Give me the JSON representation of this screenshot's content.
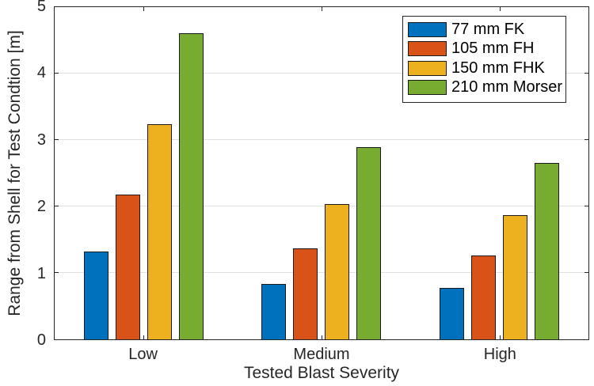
{
  "chart_data": {
    "type": "bar",
    "title": "",
    "xlabel": "Tested Blast Severity",
    "ylabel": "Range from Shell for Test Condtion [m]",
    "categories": [
      "Low",
      "Medium",
      "High"
    ],
    "series": [
      {
        "name": "77 mm FK",
        "color": "#0072BD",
        "values": [
          1.32,
          0.83,
          0.77
        ]
      },
      {
        "name": "105 mm FH",
        "color": "#D95319",
        "values": [
          2.18,
          1.37,
          1.26
        ]
      },
      {
        "name": "150 mm FHK",
        "color": "#EDB120",
        "values": [
          3.24,
          2.03,
          1.87
        ]
      },
      {
        "name": "210 mm Morser",
        "color": "#77AC30",
        "values": [
          4.61,
          2.89,
          2.66
        ]
      }
    ],
    "ylim": [
      0,
      5
    ],
    "yticks": [
      0,
      1,
      2,
      3,
      4,
      5
    ],
    "grid": "horizontal-y",
    "legend_position": "top-right"
  },
  "colors": {
    "axis": "#262626",
    "grid": "#e0e0e0",
    "bar_edge": "#1a1a1a",
    "background": "#ffffff"
  }
}
